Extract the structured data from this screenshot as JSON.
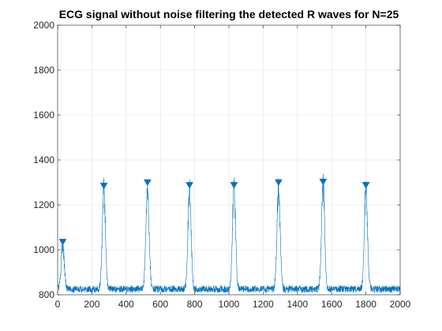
{
  "chart_data": {
    "type": "line",
    "title": "ECG signal without noise filtering the detected R waves for N=25",
    "xlabel": "",
    "ylabel": "",
    "xlim": [
      0,
      2000
    ],
    "ylim": [
      800,
      2000
    ],
    "grid": true,
    "x_ticks": [
      0,
      200,
      400,
      600,
      800,
      1000,
      1200,
      1400,
      1600,
      1800,
      2000
    ],
    "y_ticks": [
      800,
      1000,
      1200,
      1400,
      1600,
      1800,
      2000
    ],
    "colors": {
      "signal": "#0072BD",
      "marker": "#0072BD",
      "grid": "#DFDFDF",
      "axis": "#262626"
    },
    "series": [
      {
        "type": "line",
        "color": "#0072BD",
        "baseline": 825,
        "noise_amplitude": 20
      },
      {
        "type": "scatter",
        "marker": "triangle-down",
        "color": "#0072BD",
        "x": [
          30,
          270,
          525,
          770,
          1030,
          1290,
          1550,
          1800
        ],
        "y": [
          1035,
          1285,
          1300,
          1288,
          1288,
          1300,
          1303,
          1288
        ]
      }
    ]
  }
}
